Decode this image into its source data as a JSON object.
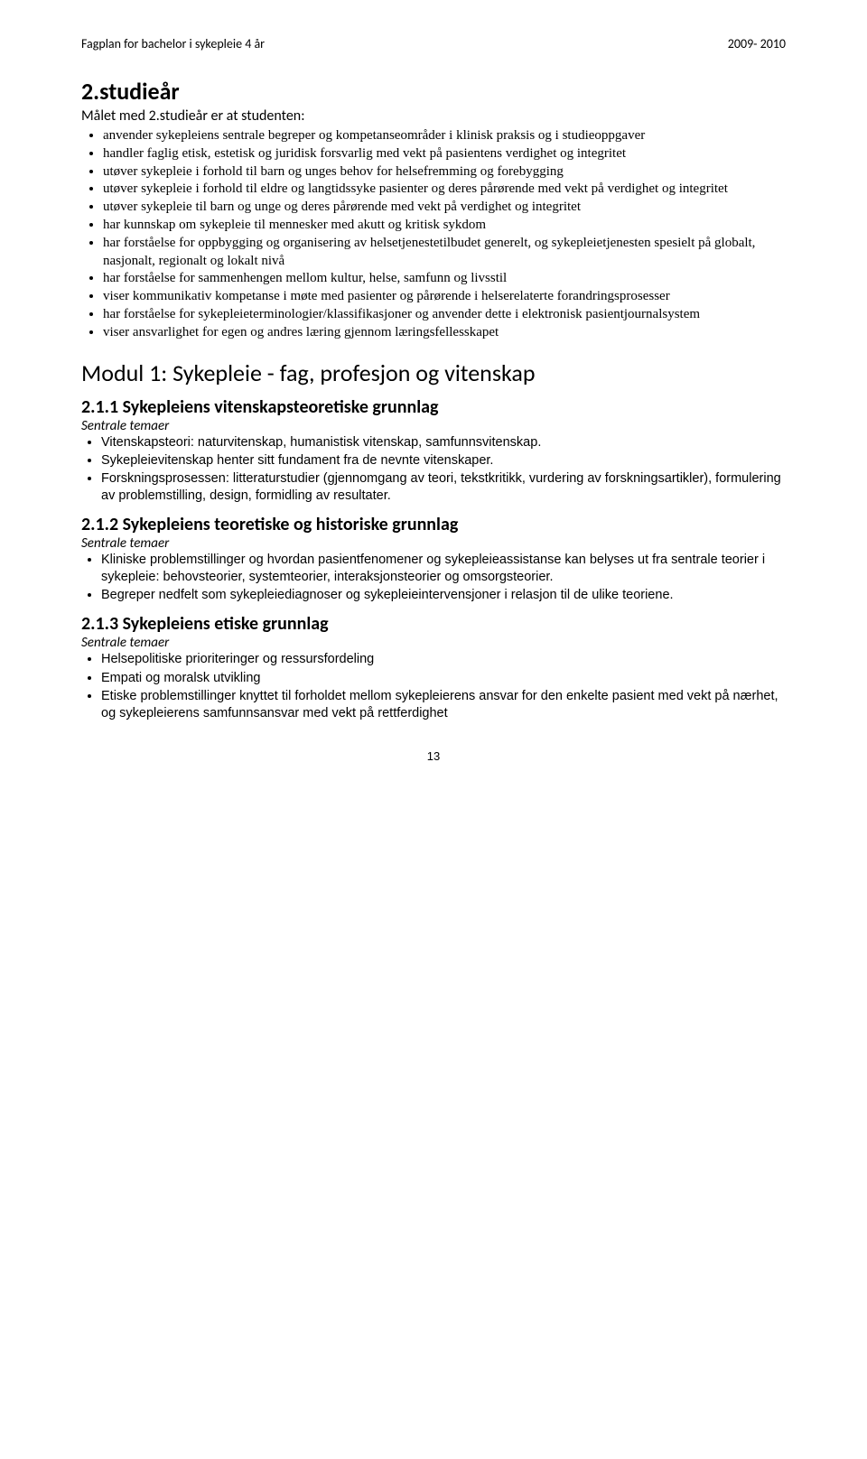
{
  "header": {
    "left": "Fagplan for bachelor i sykepleie 4 år",
    "right": "2009- 2010"
  },
  "title": "2.studieår",
  "subtitle": "Målet med 2.studieår er at studenten:",
  "main_bullets": [
    "anvender sykepleiens sentrale begreper og kompetanseområder i klinisk praksis og i studieoppgaver",
    "handler faglig etisk, estetisk og juridisk forsvarlig med vekt på pasientens verdighet og integritet",
    "utøver sykepleie i forhold til barn og unges behov for helsefremming og forebygging",
    "utøver sykepleie i forhold til eldre og langtidssyke pasienter og deres pårørende med vekt på verdighet og integritet",
    "utøver sykepleie til barn og unge og deres pårørende med vekt på verdighet og integritet",
    "har kunnskap om sykepleie til mennesker med akutt og kritisk sykdom",
    "har forståelse for oppbygging og organisering av helsetjenestetilbudet generelt, og sykepleietjenesten spesielt på globalt, nasjonalt, regionalt og lokalt nivå",
    "har forståelse for sammenhengen mellom kultur, helse, samfunn og livsstil",
    "viser kommunikativ kompetanse i møte med pasienter og pårørende i helserelaterte forandringsprosesser",
    "har forståelse for sykepleieterminologier/klassifikasjoner og anvender dette i elektronisk pasientjournalsystem",
    "viser ansvarlighet for egen og andres læring gjennom læringsfellesskapet"
  ],
  "module_title": "Modul 1: Sykepleie - fag, profesjon og vitenskap",
  "sections": [
    {
      "heading": "2.1.1 Sykepleiens vitenskapsteoretiske grunnlag",
      "label": "Sentrale temaer",
      "items": [
        "Vitenskapsteori: naturvitenskap, humanistisk vitenskap, samfunnsvitenskap.",
        "Sykepleievitenskap henter sitt fundament fra de nevnte vitenskaper.",
        "Forskningsprosessen: litteraturstudier (gjennomgang av teori, tekstkritikk, vurdering av forskningsartikler), formulering av problemstilling, design, formidling av resultater."
      ]
    },
    {
      "heading": "2.1.2 Sykepleiens teoretiske og historiske grunnlag",
      "label": "Sentrale temaer",
      "items": [
        "Kliniske problemstillinger og hvordan pasientfenomener og sykepleieassistanse kan belyses ut fra sentrale teorier i sykepleie: behovsteorier, systemteorier, interaksjonsteorier og omsorgsteorier.",
        "Begreper nedfelt som sykepleiediagnoser og sykepleieintervensjoner i relasjon til de ulike teoriene."
      ]
    },
    {
      "heading": "2.1.3 Sykepleiens etiske grunnlag",
      "label": "Sentrale temaer",
      "items": [
        "Helsepolitiske prioriteringer og ressursfordeling",
        "Empati og moralsk utvikling",
        "Etiske problemstillinger knyttet til forholdet mellom sykepleierens ansvar for den enkelte pasient med vekt på nærhet, og sykepleierens samfunnsansvar med vekt på rettferdighet"
      ]
    }
  ],
  "page_number": "13"
}
